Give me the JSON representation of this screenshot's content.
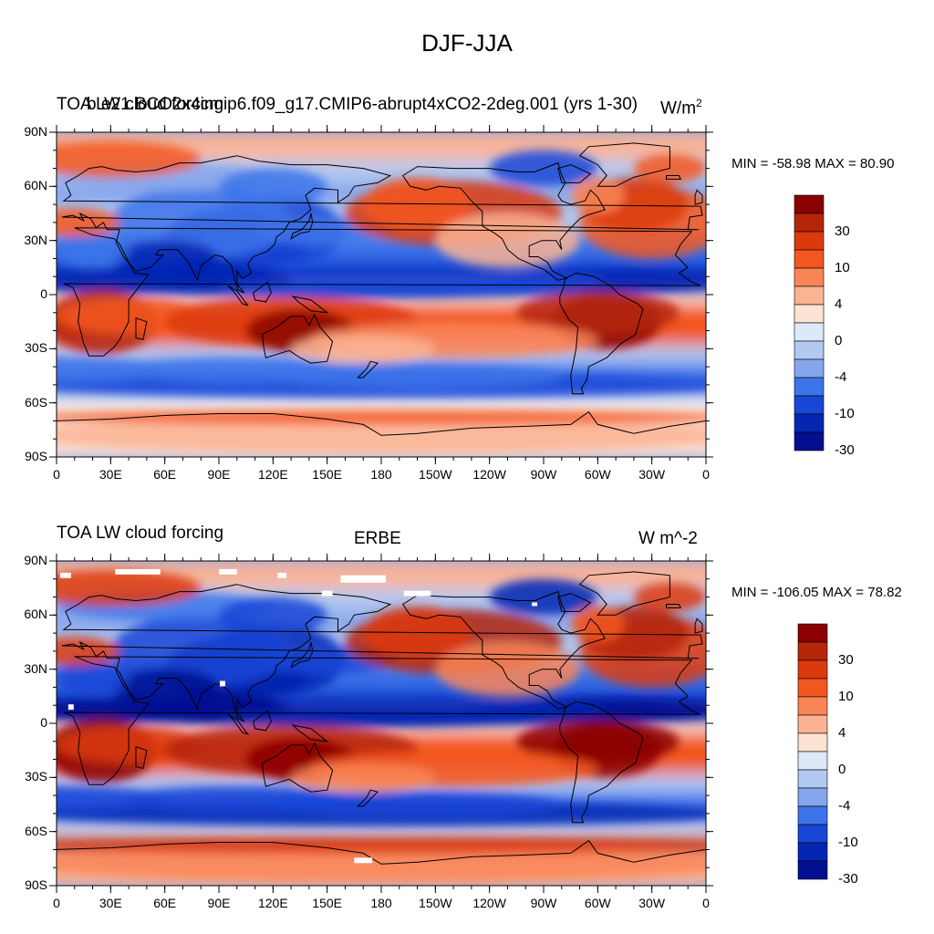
{
  "title": "DJF-JJA",
  "panels": [
    {
      "left_title": "TOA LW cloud forcing",
      "left_title_overlay": "b.e21.BCO2x4cmip6.f09_g17.CMIP6-abrupt4xCO2-2deg.001 (yrs 1-30)",
      "center_title": "",
      "units": "W/m",
      "units_sup": "2",
      "min_max": "MIN = -58.98 MAX =  80.90"
    },
    {
      "left_title": "TOA LW cloud forcing",
      "left_title_overlay": "",
      "center_title": "ERBE",
      "units": "W m^-2",
      "units_sup": "",
      "min_max": "MIN = -106.05 MAX =  78.82"
    }
  ],
  "lat_labels": [
    "90N",
    "60N",
    "30N",
    "0",
    "30S",
    "60S",
    "90S"
  ],
  "lon_labels": [
    "0",
    "30E",
    "60E",
    "90E",
    "120E",
    "150E",
    "180",
    "150W",
    "120W",
    "90W",
    "60W",
    "30W",
    "0"
  ],
  "colorbar": {
    "labels": [
      "30",
      "10",
      "4",
      "0",
      "-4",
      "-10",
      "-30"
    ],
    "colors": [
      "#8b0000",
      "#b52508",
      "#dc3a0c",
      "#f3571f",
      "#f98557",
      "#fcb393",
      "#fde3d3",
      "#dde9f8",
      "#b2c9f1",
      "#85a5ec",
      "#3d74ea",
      "#1846d6",
      "#0525b3",
      "#020f90"
    ]
  },
  "map_legend": {
    "land_outline": "#000000",
    "missing_data": "#ffffff"
  }
}
